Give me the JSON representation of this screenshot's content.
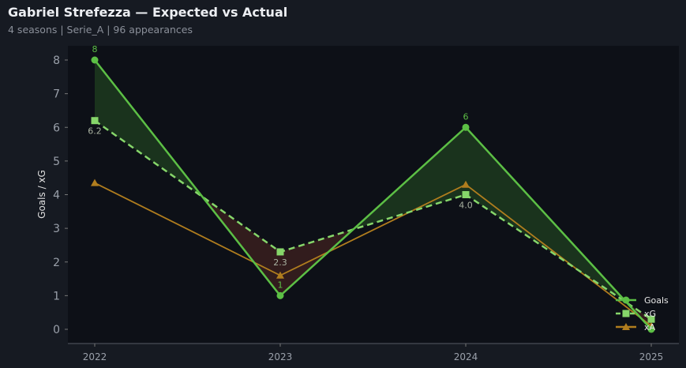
{
  "title": "Gabriel Strefezza — Expected vs Actual",
  "subtitle": "4 seasons | Serie_A | 96 appearances",
  "chart_data": {
    "type": "line",
    "categories": [
      "2022",
      "2023",
      "2024",
      "2025"
    ],
    "ylabel": "Goals / xG",
    "ylim": [
      -0.4,
      8.4
    ],
    "yticks": [
      0,
      1,
      2,
      3,
      4,
      5,
      6,
      7,
      8
    ],
    "grid": false,
    "legend": "bottom-right",
    "series": [
      {
        "name": "Goals",
        "values": [
          8,
          1,
          6,
          0
        ],
        "color": "#5cbf45",
        "marker": "circle",
        "labels": [
          "8",
          "1",
          "6",
          ""
        ]
      },
      {
        "name": "xG",
        "values": [
          6.2,
          2.3,
          4.0,
          0.3
        ],
        "color": "#86d66a",
        "marker": "square",
        "dashed": true,
        "labels": [
          "6.2",
          "2.3",
          "4.0",
          ""
        ]
      },
      {
        "name": "xA",
        "values": [
          4.35,
          1.6,
          4.3,
          0.1
        ],
        "color": "#b07d1e",
        "marker": "triangle"
      }
    ],
    "fill_colors": {
      "above": "#1d3a1f",
      "below": "#3a1f1f"
    }
  }
}
